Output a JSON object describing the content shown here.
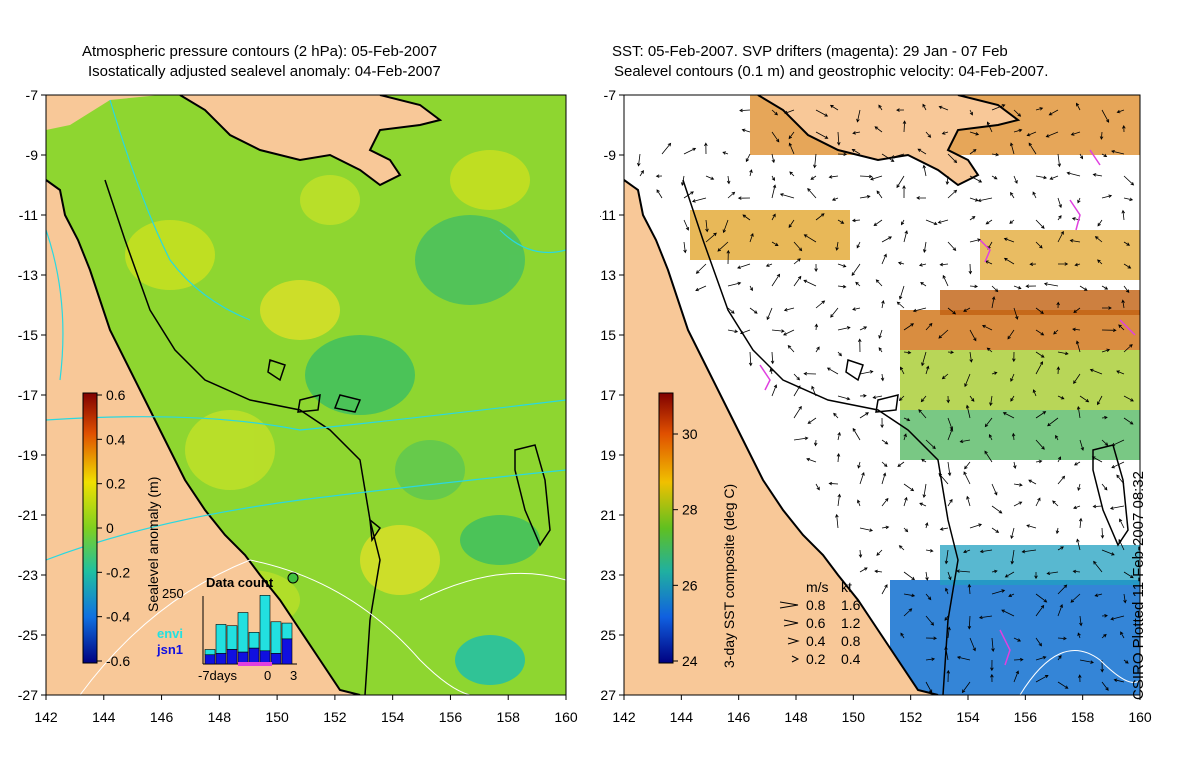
{
  "left_panel": {
    "title_line1": "Atmospheric pressure contours (2 hPa): 05-Feb-2007",
    "title_line2": "Isostatically adjusted sealevel anomaly: 04-Feb-2007",
    "colorbar_label": "Sealevel anomaly (m)",
    "colorbar_ticks": [
      "0.6",
      "0.4",
      "0.2",
      "0",
      "-0.2",
      "-0.4",
      "-0.6"
    ],
    "inset": {
      "title": "Data count",
      "ymax_label": "250",
      "x_labels": [
        "-7days",
        "0",
        "3"
      ],
      "legend_envi": "envi",
      "legend_jsn1": "jsn1",
      "envi_color": "#22e0e0",
      "jsn1_color": "#1010e0",
      "envi_counts": [
        20,
        110,
        90,
        150,
        60,
        210,
        120,
        60
      ],
      "jsn1_counts": [
        35,
        40,
        55,
        45,
        60,
        50,
        40,
        95
      ]
    }
  },
  "right_panel": {
    "title_line1": "SST: 05-Feb-2007. SVP drifters (magenta): 29 Jan - 07 Feb",
    "title_line2": "Sealevel contours (0.1 m) and geostrophic velocity: 04-Feb-2007.",
    "colorbar_label": "3-day SST composite (deg C)",
    "colorbar_ticks": [
      "30",
      "28",
      "26",
      "24"
    ],
    "velocity_legend": {
      "header_ms": "m/s",
      "header_kt": "kt",
      "rows": [
        {
          "ms": "0.8",
          "kt": "1.6"
        },
        {
          "ms": "0.6",
          "kt": "1.2"
        },
        {
          "ms": "0.4",
          "kt": "0.8"
        },
        {
          "ms": "0.2",
          "kt": "0.4"
        }
      ]
    }
  },
  "axes": {
    "lat_labels": [
      "-7",
      "-9",
      "-11",
      "-13",
      "-15",
      "-17",
      "-19",
      "-21",
      "-23",
      "-25",
      "-27"
    ],
    "lon_labels": [
      "142",
      "144",
      "146",
      "148",
      "150",
      "152",
      "154",
      "156",
      "158",
      "160"
    ]
  },
  "colors": {
    "land": "#f8c898",
    "sea_anomaly": "#8ed630",
    "sst_ocean": "#ffffff",
    "coastline": "#000000",
    "pressure_contour": "#2ad8e0",
    "drifter": "#e040e0"
  },
  "stamp": "CSIRO Plotted 11-Feb-2007 08:32"
}
